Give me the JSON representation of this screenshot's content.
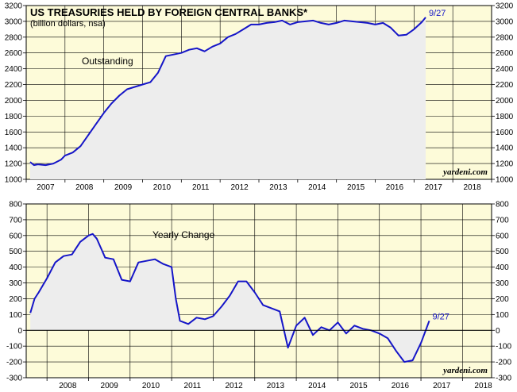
{
  "colors": {
    "plot_bg": "#fdfbd9",
    "area_fill": "#ededed",
    "line": "#1515c8",
    "grid": "#000000"
  },
  "chart_data": [
    {
      "type": "area",
      "title": "US TREASURIES HELD BY FOREIGN CENTRAL BANKS*",
      "subtitle": "(billion dollars, nsa)",
      "label": "Outstanding",
      "end_label": "9/27",
      "source": "yardeni.com",
      "xlim": [
        2007.0,
        2019.0
      ],
      "ylim": [
        1000,
        3200
      ],
      "y_ticks": [
        1000,
        1200,
        1400,
        1600,
        1800,
        2000,
        2200,
        2400,
        2600,
        2800,
        3000,
        3200
      ],
      "x_tick_labels": [
        "2007",
        "2008",
        "2009",
        "2010",
        "2011",
        "2012",
        "2013",
        "2014",
        "2015",
        "2016",
        "2017",
        "2018"
      ],
      "series": [
        {
          "x": [
            2007.1,
            2007.2,
            2007.3,
            2007.5,
            2007.7,
            2007.9,
            2008.0,
            2008.2,
            2008.4,
            2008.6,
            2008.8,
            2009.0,
            2009.2,
            2009.4,
            2009.6,
            2009.8,
            2010.0,
            2010.2,
            2010.4,
            2010.6,
            2010.8,
            2011.0,
            2011.2,
            2011.4,
            2011.6,
            2011.8,
            2012.0,
            2012.2,
            2012.4,
            2012.6,
            2012.8,
            2013.0,
            2013.2,
            2013.4,
            2013.6,
            2013.8,
            2014.0,
            2014.2,
            2014.4,
            2014.6,
            2014.8,
            2015.0,
            2015.2,
            2015.4,
            2015.6,
            2015.8,
            2016.0,
            2016.2,
            2016.4,
            2016.6,
            2016.8,
            2017.0,
            2017.2,
            2017.3
          ],
          "y": [
            1220,
            1180,
            1190,
            1180,
            1200,
            1250,
            1300,
            1340,
            1420,
            1560,
            1700,
            1840,
            1960,
            2060,
            2140,
            2170,
            2200,
            2230,
            2350,
            2560,
            2580,
            2600,
            2640,
            2660,
            2620,
            2680,
            2720,
            2800,
            2840,
            2900,
            2960,
            2960,
            2980,
            2990,
            3010,
            2960,
            2990,
            3000,
            3010,
            2980,
            2960,
            2980,
            3010,
            3000,
            2990,
            2980,
            2960,
            2980,
            2920,
            2820,
            2830,
            2900,
            2990,
            3050
          ]
        }
      ]
    },
    {
      "type": "area",
      "label": "Yearly Change",
      "end_label": "9/27",
      "source": "yardeni.com",
      "xlim": [
        2007.5,
        2018.7
      ],
      "ylim": [
        -300,
        800
      ],
      "y_ticks": [
        -300,
        -200,
        -100,
        0,
        100,
        200,
        300,
        400,
        500,
        600,
        700,
        800
      ],
      "x_tick_labels": [
        "2008",
        "2009",
        "2010",
        "2011",
        "2012",
        "2013",
        "2014",
        "2015",
        "2016",
        "2017",
        "2018"
      ],
      "series": [
        {
          "x": [
            2007.6,
            2007.7,
            2007.8,
            2008.0,
            2008.2,
            2008.4,
            2008.6,
            2008.8,
            2009.0,
            2009.1,
            2009.2,
            2009.4,
            2009.6,
            2009.8,
            2010.0,
            2010.2,
            2010.4,
            2010.6,
            2010.8,
            2011.0,
            2011.1,
            2011.2,
            2011.4,
            2011.6,
            2011.8,
            2012.0,
            2012.2,
            2012.4,
            2012.6,
            2012.8,
            2013.0,
            2013.2,
            2013.4,
            2013.6,
            2013.8,
            2014.0,
            2014.2,
            2014.4,
            2014.6,
            2014.8,
            2015.0,
            2015.2,
            2015.4,
            2015.6,
            2015.8,
            2016.0,
            2016.2,
            2016.4,
            2016.6,
            2016.8,
            2017.0,
            2017.1,
            2017.2
          ],
          "y": [
            110,
            200,
            240,
            330,
            430,
            470,
            480,
            560,
            600,
            610,
            580,
            460,
            450,
            320,
            310,
            430,
            440,
            450,
            420,
            400,
            200,
            60,
            40,
            80,
            70,
            90,
            150,
            220,
            310,
            310,
            240,
            160,
            140,
            120,
            -110,
            30,
            80,
            -30,
            20,
            0,
            50,
            -20,
            30,
            10,
            0,
            -20,
            -50,
            -130,
            -200,
            -190,
            -80,
            -10,
            60
          ]
        }
      ]
    }
  ]
}
